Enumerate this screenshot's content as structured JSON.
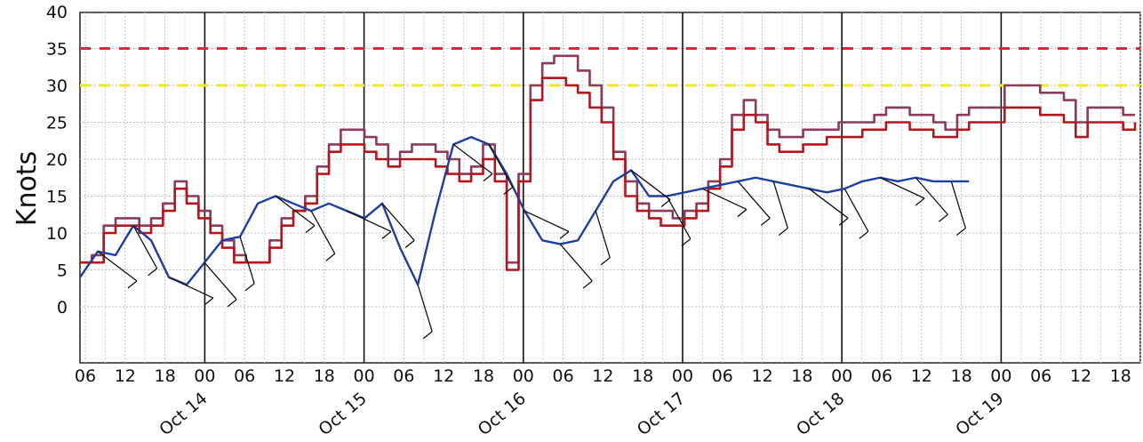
{
  "chart_data": {
    "type": "line",
    "ylabel": "Knots",
    "ylim": [
      -8,
      40
    ],
    "y_ticks": [
      "40",
      "35",
      "30",
      "25",
      "20",
      "15",
      "10",
      "5",
      "0"
    ],
    "hour_ticks": [
      "06",
      "12",
      "18",
      "00",
      "06",
      "12",
      "18",
      "00",
      "06",
      "12",
      "18",
      "00",
      "06",
      "12",
      "18",
      "00",
      "06",
      "12",
      "18",
      "00",
      "06",
      "12",
      "18",
      "00",
      "06",
      "12",
      "18"
    ],
    "date_ticks": [
      "Oct 14",
      "Oct 15",
      "Oct 16",
      "Oct 17",
      "Oct 18",
      "Oct 19"
    ],
    "grid": true,
    "thresholds": [
      {
        "value": 35,
        "color": "#d8283a"
      },
      {
        "value": 30,
        "color": "#f0ea1c"
      }
    ],
    "colors": {
      "gust_upper": "#8c3a5e",
      "gust": "#b3161c",
      "wind": "#1f3f9e",
      "barb": "#111111"
    },
    "series": [
      {
        "key": "gust_upper",
        "x": [
          0,
          1,
          2,
          3,
          4,
          5,
          6,
          7,
          8,
          9,
          10,
          11,
          12,
          13,
          14,
          15,
          16,
          17,
          18,
          19,
          20,
          21,
          22,
          23,
          24,
          25,
          26,
          27,
          28,
          29,
          30,
          31,
          32,
          33,
          34,
          35,
          36,
          37,
          38,
          39,
          40,
          41,
          42,
          43,
          44,
          45,
          46,
          47,
          48,
          49,
          50,
          51,
          52,
          53,
          54,
          55,
          56,
          57,
          58,
          59,
          60,
          61,
          62,
          63,
          64,
          65,
          66,
          67,
          68,
          69,
          70,
          71,
          72,
          73,
          74,
          75,
          76,
          77,
          78,
          79,
          80,
          81,
          82,
          83,
          84,
          85,
          86,
          87,
          88,
          89
        ],
        "values": [
          6,
          7,
          11,
          12,
          12,
          11,
          12,
          14,
          17,
          15,
          13,
          11,
          9,
          7,
          6,
          6,
          9,
          12,
          13,
          15,
          19,
          22,
          24,
          24,
          23,
          22,
          20,
          21,
          22,
          22,
          21,
          20,
          18,
          19,
          22,
          18,
          6,
          18,
          30,
          33,
          34,
          34,
          32,
          30,
          27,
          21,
          17,
          14,
          13,
          13,
          12,
          13,
          14,
          17,
          20,
          26,
          28,
          26,
          24,
          23,
          23,
          24,
          24,
          24,
          25,
          25,
          25,
          26,
          27,
          27,
          26,
          26,
          25,
          24,
          26,
          27,
          27,
          27,
          30,
          30,
          30,
          29,
          29,
          28,
          25,
          27,
          27,
          27,
          26,
          26
        ]
      },
      {
        "key": "gust",
        "x": [
          0,
          1,
          2,
          3,
          4,
          5,
          6,
          7,
          8,
          9,
          10,
          11,
          12,
          13,
          14,
          15,
          16,
          17,
          18,
          19,
          20,
          21,
          22,
          23,
          24,
          25,
          26,
          27,
          28,
          29,
          30,
          31,
          32,
          33,
          34,
          35,
          36,
          37,
          38,
          39,
          40,
          41,
          42,
          43,
          44,
          45,
          46,
          47,
          48,
          49,
          50,
          51,
          52,
          53,
          54,
          55,
          56,
          57,
          58,
          59,
          60,
          61,
          62,
          63,
          64,
          65,
          66,
          67,
          68,
          69,
          70,
          71,
          72,
          73,
          74,
          75,
          76,
          77,
          78,
          79,
          80,
          81,
          82,
          83,
          84,
          85,
          86,
          87,
          88,
          89
        ],
        "values": [
          6,
          6,
          10,
          11,
          11,
          10,
          11,
          13,
          16,
          14,
          12,
          10,
          8,
          6,
          6,
          6,
          8,
          11,
          13,
          14,
          18,
          21,
          22,
          22,
          21,
          20,
          19,
          20,
          20,
          20,
          19,
          18,
          17,
          18,
          20,
          17,
          5,
          17,
          28,
          31,
          31,
          30,
          29,
          27,
          25,
          20,
          15,
          13,
          12,
          11,
          11,
          12,
          13,
          16,
          19,
          24,
          26,
          25,
          22,
          21,
          21,
          22,
          22,
          23,
          23,
          23,
          24,
          24,
          25,
          25,
          24,
          24,
          23,
          23,
          24,
          25,
          25,
          25,
          27,
          27,
          27,
          26,
          26,
          25,
          23,
          25,
          25,
          25,
          24,
          25
        ]
      },
      {
        "key": "wind",
        "x": [
          0,
          1.5,
          3,
          4.5,
          6,
          7.5,
          9,
          10.5,
          12,
          13.5,
          15,
          16.5,
          18,
          19.5,
          21,
          22.5,
          24,
          25.5,
          27,
          28.5,
          30,
          31.5,
          33,
          34.5,
          36,
          37.5,
          39,
          40.5,
          42,
          43.5,
          45,
          46.5,
          48,
          49.5,
          51,
          52.5,
          54,
          55.5,
          57,
          58.5,
          60,
          61.5,
          63,
          64.5,
          66,
          67.5,
          69,
          70.5,
          72,
          73.5,
          75
        ],
        "values": [
          4,
          7.5,
          7,
          11,
          9,
          4,
          3,
          6,
          9,
          9.5,
          14,
          15,
          14,
          13,
          14,
          13,
          12,
          14,
          8,
          3,
          13,
          22,
          23,
          22,
          18,
          13,
          9,
          8.5,
          9,
          13,
          17,
          18.5,
          15,
          15,
          15.5,
          16,
          16.5,
          17,
          17.5,
          17,
          16.5,
          16,
          15.5,
          16,
          17,
          17.5,
          17,
          17.5,
          17,
          17,
          17
        ]
      }
    ]
  }
}
